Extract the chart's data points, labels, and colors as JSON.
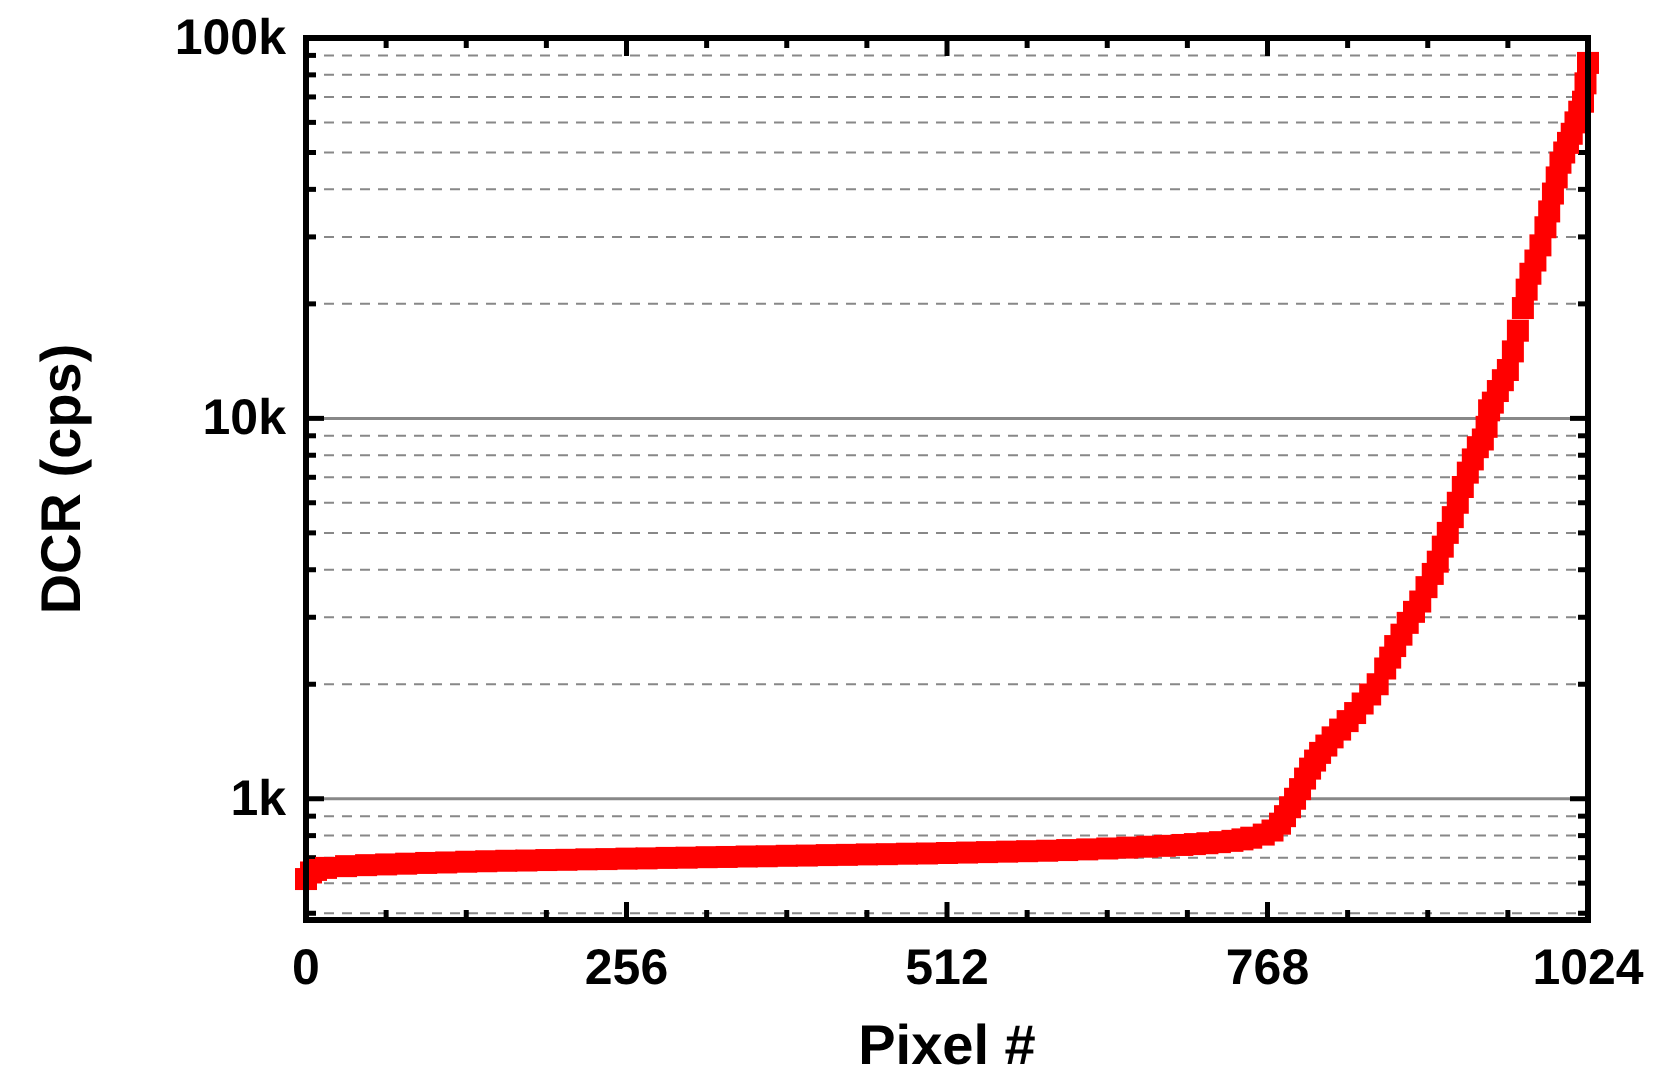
{
  "chart_data": {
    "type": "scatter",
    "xlabel": "Pixel #",
    "ylabel": "DCR (cps)",
    "log": "y",
    "grid": true,
    "marker": "square",
    "xlim": [
      0,
      1024
    ],
    "ylim": [
      480,
      100000
    ],
    "xticks": [
      0,
      {
        "value": 64,
        "label": null
      },
      {
        "value": 128,
        "label": null
      },
      {
        "value": 192,
        "label": null
      },
      256,
      {
        "value": 320,
        "label": null
      },
      {
        "value": 384,
        "label": null
      },
      {
        "value": 448,
        "label": null
      },
      512,
      {
        "value": 576,
        "label": null
      },
      {
        "value": 640,
        "label": null
      },
      {
        "value": 704,
        "label": null
      },
      768,
      {
        "value": 832,
        "label": null
      },
      {
        "value": 896,
        "label": null
      },
      {
        "value": 960,
        "label": null
      },
      1024
    ],
    "yticks": [
      {
        "value": 500,
        "label": null
      },
      {
        "value": 600,
        "label": null
      },
      {
        "value": 700,
        "label": null
      },
      {
        "value": 800,
        "label": null
      },
      {
        "value": 900,
        "label": null
      },
      {
        "value": 1000,
        "label": "1k"
      },
      {
        "value": 2000,
        "label": null
      },
      {
        "value": 3000,
        "label": null
      },
      {
        "value": 4000,
        "label": null
      },
      {
        "value": 5000,
        "label": null
      },
      {
        "value": 6000,
        "label": null
      },
      {
        "value": 7000,
        "label": null
      },
      {
        "value": 8000,
        "label": null
      },
      {
        "value": 9000,
        "label": null
      },
      {
        "value": 10000,
        "label": "10k"
      },
      {
        "value": 20000,
        "label": null
      },
      {
        "value": 30000,
        "label": null
      },
      {
        "value": 40000,
        "label": null
      },
      {
        "value": 50000,
        "label": null
      },
      {
        "value": 60000,
        "label": null
      },
      {
        "value": 70000,
        "label": null
      },
      {
        "value": 80000,
        "label": null
      },
      {
        "value": 90000,
        "label": null
      },
      {
        "value": 100000,
        "label": "100k"
      }
    ],
    "series": [
      {
        "color": "#ff0000",
        "x": [
          0,
          4,
          8,
          16,
          32,
          48,
          64,
          80,
          96,
          112,
          128,
          144,
          160,
          176,
          192,
          208,
          224,
          240,
          256,
          272,
          288,
          304,
          320,
          336,
          352,
          368,
          384,
          400,
          416,
          432,
          448,
          464,
          480,
          496,
          512,
          528,
          544,
          560,
          576,
          592,
          608,
          624,
          640,
          656,
          672,
          686,
          700,
          710,
          720,
          730,
          740,
          748,
          755,
          765,
          772,
          778,
          782,
          786,
          790,
          794,
          798,
          802,
          806,
          810,
          815,
          820,
          826,
          832,
          838,
          844,
          850,
          856,
          862,
          866,
          870,
          875,
          880,
          885,
          890,
          895,
          900,
          904,
          908,
          912,
          916,
          920,
          924,
          928,
          932,
          936,
          940,
          943,
          945,
          948,
          952,
          956,
          960,
          964,
          968,
          972,
          975,
          978,
          982,
          986,
          990,
          993,
          996,
          999,
          1002,
          1005,
          1008,
          1011,
          1014,
          1017,
          1020,
          1022,
          1024
        ],
        "values": [
          615,
          640,
          650,
          658,
          665,
          669,
          672,
          675,
          678,
          680,
          683,
          685,
          687,
          688,
          690,
          691,
          693,
          694,
          696,
          697,
          699,
          700,
          702,
          703,
          705,
          706,
          708,
          709,
          711,
          712,
          714,
          715,
          717,
          718,
          720,
          722,
          724,
          726,
          728,
          730,
          733,
          736,
          740,
          744,
          748,
          752,
          756,
          760,
          764,
          769,
          775,
          782,
          790,
          805,
          825,
          860,
          900,
          950,
          1000,
          1060,
          1130,
          1200,
          1260,
          1320,
          1380,
          1450,
          1520,
          1600,
          1680,
          1780,
          1880,
          2000,
          2200,
          2350,
          2520,
          2700,
          2900,
          3100,
          3300,
          3600,
          3900,
          4200,
          4600,
          5000,
          5500,
          6000,
          6600,
          7200,
          7800,
          8400,
          8800,
          9500,
          10500,
          11000,
          11800,
          12600,
          13400,
          15000,
          17000,
          19500,
          21800,
          24000,
          26000,
          28500,
          31800,
          35000,
          39000,
          43000,
          47000,
          50000,
          53000,
          56000,
          60000,
          64000,
          68000,
          76000,
          86000
        ]
      }
    ]
  }
}
